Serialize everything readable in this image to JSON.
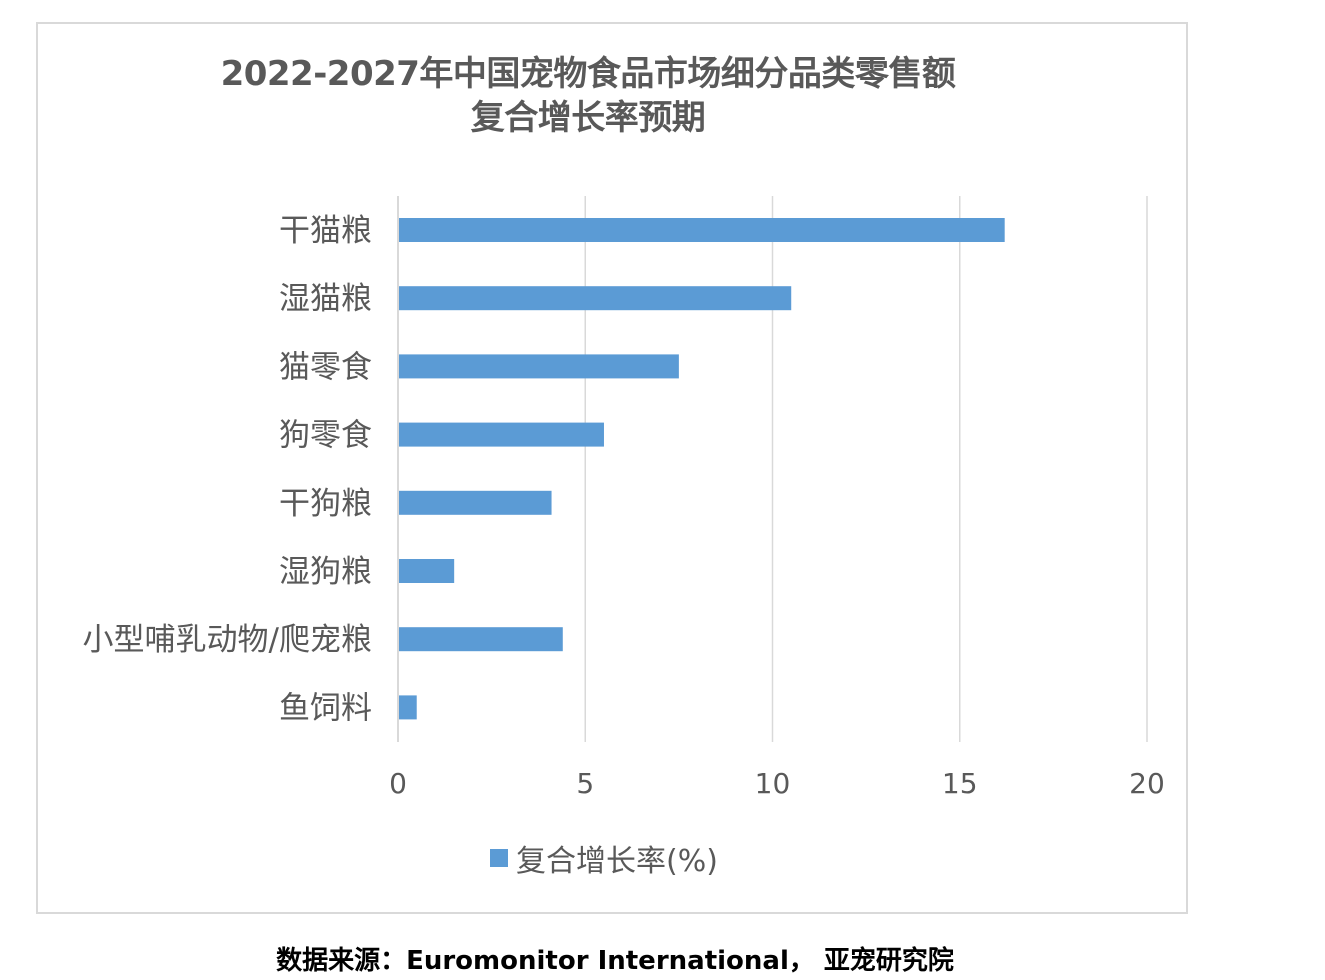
{
  "chart_data": {
    "type": "bar",
    "orientation": "horizontal",
    "title_lines": [
      "2022-2027年中国宠物食品市场细分品类零售额",
      "复合增长率预期"
    ],
    "categories": [
      "干猫粮",
      "湿猫粮",
      "猫零食",
      "狗零食",
      "干狗粮",
      "湿狗粮",
      "小型哺乳动物/爬宠粮",
      "鱼饲料"
    ],
    "series": [
      {
        "name": "复合增长率(%)",
        "values": [
          16.2,
          10.5,
          7.5,
          5.5,
          4.1,
          1.5,
          4.4,
          0.5
        ],
        "color": "#5b9bd5"
      }
    ],
    "xlim": [
      0,
      20
    ],
    "xticks": [
      0,
      5,
      10,
      15,
      20
    ],
    "grid": true,
    "legend_position": "bottom",
    "gridline_color": "#d9d9d9"
  },
  "source_note": "数据来源：Euromonitor International， 亚宠研究院"
}
